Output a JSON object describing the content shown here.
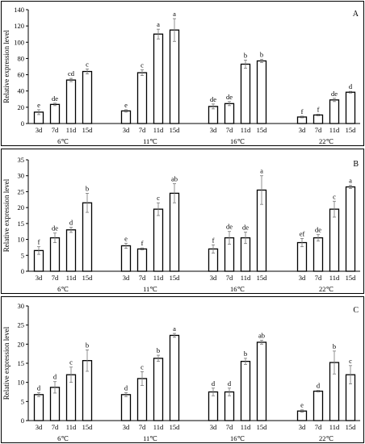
{
  "chart_data": [
    {
      "type": "bar",
      "panel_label": "A",
      "ylabel": "Relative expression level",
      "ylim": [
        0,
        140
      ],
      "yticks": [
        0,
        20,
        40,
        60,
        80,
        100,
        120,
        140
      ],
      "groups": [
        "6℃",
        "11℃",
        "16℃",
        "22℃"
      ],
      "categories": [
        "3d",
        "7d",
        "11d",
        "15d"
      ],
      "bars": [
        {
          "value": 14,
          "error": 3,
          "letter": "e"
        },
        {
          "value": 23.5,
          "error": 1.5,
          "letter": "de"
        },
        {
          "value": 53.5,
          "error": 2,
          "letter": "cd"
        },
        {
          "value": 64,
          "error": 3,
          "letter": "c"
        },
        {
          "value": 15.5,
          "error": 1.5,
          "letter": "e"
        },
        {
          "value": 62.5,
          "error": 3.5,
          "letter": "c"
        },
        {
          "value": 110,
          "error": 6,
          "letter": "a"
        },
        {
          "value": 115,
          "error": 14,
          "letter": "a"
        },
        {
          "value": 21,
          "error": 3,
          "letter": "de"
        },
        {
          "value": 24.5,
          "error": 2.5,
          "letter": "de"
        },
        {
          "value": 73,
          "error": 5,
          "letter": "b"
        },
        {
          "value": 77,
          "error": 2,
          "letter": "b"
        },
        {
          "value": 8,
          "error": 1,
          "letter": "f"
        },
        {
          "value": 10.5,
          "error": 1,
          "letter": "f"
        },
        {
          "value": 29,
          "error": 2,
          "letter": "de"
        },
        {
          "value": 38.5,
          "error": 1,
          "letter": "d"
        }
      ]
    },
    {
      "type": "bar",
      "panel_label": "B",
      "ylabel": "Relative expression level",
      "ylim": [
        0,
        35
      ],
      "yticks": [
        0,
        5,
        10,
        15,
        20,
        25,
        30,
        35
      ],
      "groups": [
        "6℃",
        "11℃",
        "16℃",
        "22℃"
      ],
      "categories": [
        "3d",
        "7d",
        "11d",
        "15d"
      ],
      "bars": [
        {
          "value": 6.5,
          "error": 1.2,
          "letter": "f"
        },
        {
          "value": 10.5,
          "error": 1.5,
          "letter": "de"
        },
        {
          "value": 13,
          "error": 0.8,
          "letter": "d"
        },
        {
          "value": 21.5,
          "error": 3,
          "letter": "b"
        },
        {
          "value": 8,
          "error": 0.8,
          "letter": "e"
        },
        {
          "value": 7,
          "error": 0.3,
          "letter": "f"
        },
        {
          "value": 19.5,
          "error": 2,
          "letter": "c"
        },
        {
          "value": 24.5,
          "error": 3,
          "letter": "ab"
        },
        {
          "value": 7,
          "error": 1.3,
          "letter": "f"
        },
        {
          "value": 10.5,
          "error": 2,
          "letter": "de"
        },
        {
          "value": 10.5,
          "error": 1.8,
          "letter": "de"
        },
        {
          "value": 25.5,
          "error": 4.5,
          "letter": "a"
        },
        {
          "value": 9,
          "error": 1.3,
          "letter": "ef"
        },
        {
          "value": 10.5,
          "error": 1,
          "letter": "de"
        },
        {
          "value": 19.5,
          "error": 2.5,
          "letter": "c"
        },
        {
          "value": 26.5,
          "error": 0.5,
          "letter": "a"
        }
      ]
    },
    {
      "type": "bar",
      "panel_label": "C",
      "ylabel": "Relative expression level",
      "ylim": [
        0,
        30
      ],
      "yticks": [
        0,
        5,
        10,
        15,
        20,
        25,
        30
      ],
      "groups": [
        "6℃",
        "11℃",
        "16℃",
        "22℃"
      ],
      "categories": [
        "3d",
        "7d",
        "11d",
        "15d"
      ],
      "bars": [
        {
          "value": 6.8,
          "error": 0.5,
          "letter": "d"
        },
        {
          "value": 8.7,
          "error": 1.5,
          "letter": "d"
        },
        {
          "value": 12,
          "error": 2,
          "letter": "c"
        },
        {
          "value": 15.7,
          "error": 2.8,
          "letter": "b"
        },
        {
          "value": 6.8,
          "error": 0.5,
          "letter": "d"
        },
        {
          "value": 11,
          "error": 1.8,
          "letter": "c"
        },
        {
          "value": 16.3,
          "error": 0.8,
          "letter": "b"
        },
        {
          "value": 22.3,
          "error": 0.5,
          "letter": "a"
        },
        {
          "value": 7.5,
          "error": 1,
          "letter": "d"
        },
        {
          "value": 7.5,
          "error": 1,
          "letter": "d"
        },
        {
          "value": 15.5,
          "error": 0.8,
          "letter": "b"
        },
        {
          "value": 20.5,
          "error": 0.5,
          "letter": "ab"
        },
        {
          "value": 2.5,
          "error": 0.3,
          "letter": "e"
        },
        {
          "value": 7.7,
          "error": 0.2,
          "letter": "d"
        },
        {
          "value": 15.2,
          "error": 3,
          "letter": "b"
        },
        {
          "value": 12,
          "error": 2.4,
          "letter": "c"
        }
      ]
    }
  ]
}
